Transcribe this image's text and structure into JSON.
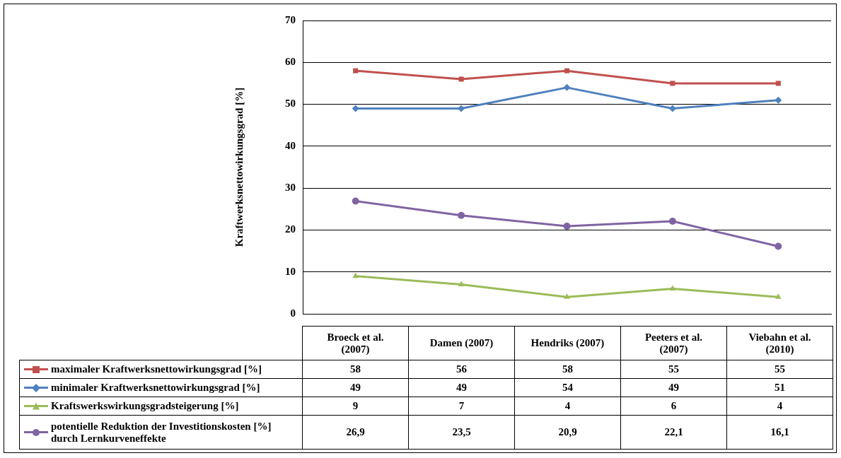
{
  "chart_data": {
    "type": "line",
    "ylabel": "Kraftwerksnettowirkungsgrad [%]",
    "categories": [
      "Broeck et al. (2007)",
      "Damen (2007)",
      "Hendriks (2007)",
      "Peeters et al. (2007)",
      "Viebahn et al. (2010)"
    ],
    "series": [
      {
        "name": "maximaler Kraftwerksnettowirkungsgrad [%]",
        "color": "#c0504d",
        "marker": "square",
        "values": [
          58,
          56,
          58,
          55,
          55
        ],
        "value_labels": [
          "58",
          "56",
          "58",
          "55",
          "55"
        ]
      },
      {
        "name": "minimaler Kraftwerksnettowirkungsgrad [%]",
        "color": "#4f81bd",
        "marker": "diamond",
        "values": [
          49,
          49,
          54,
          49,
          51
        ],
        "value_labels": [
          "49",
          "49",
          "54",
          "49",
          "51"
        ]
      },
      {
        "name": "Kraftswerkswirkungsgradsteigerung [%]",
        "color": "#9bbb59",
        "marker": "triangle",
        "values": [
          9,
          7,
          4,
          6,
          4
        ],
        "value_labels": [
          "9",
          "7",
          "4",
          "6",
          "4"
        ]
      },
      {
        "name": "potentielle Reduktion der Investitionskosten [%] durch Lernkurveneffekte",
        "color": "#8064a2",
        "marker": "circle",
        "values": [
          26.9,
          23.5,
          20.9,
          22.1,
          16.1
        ],
        "value_labels": [
          "26,9",
          "23,5",
          "20,9",
          "22,1",
          "16,1"
        ]
      }
    ],
    "ylim": [
      0,
      70
    ],
    "yticks": [
      0,
      10,
      20,
      30,
      40,
      50,
      60,
      70
    ],
    "grid": "y",
    "legend": "bottom",
    "line_style": "solid"
  }
}
